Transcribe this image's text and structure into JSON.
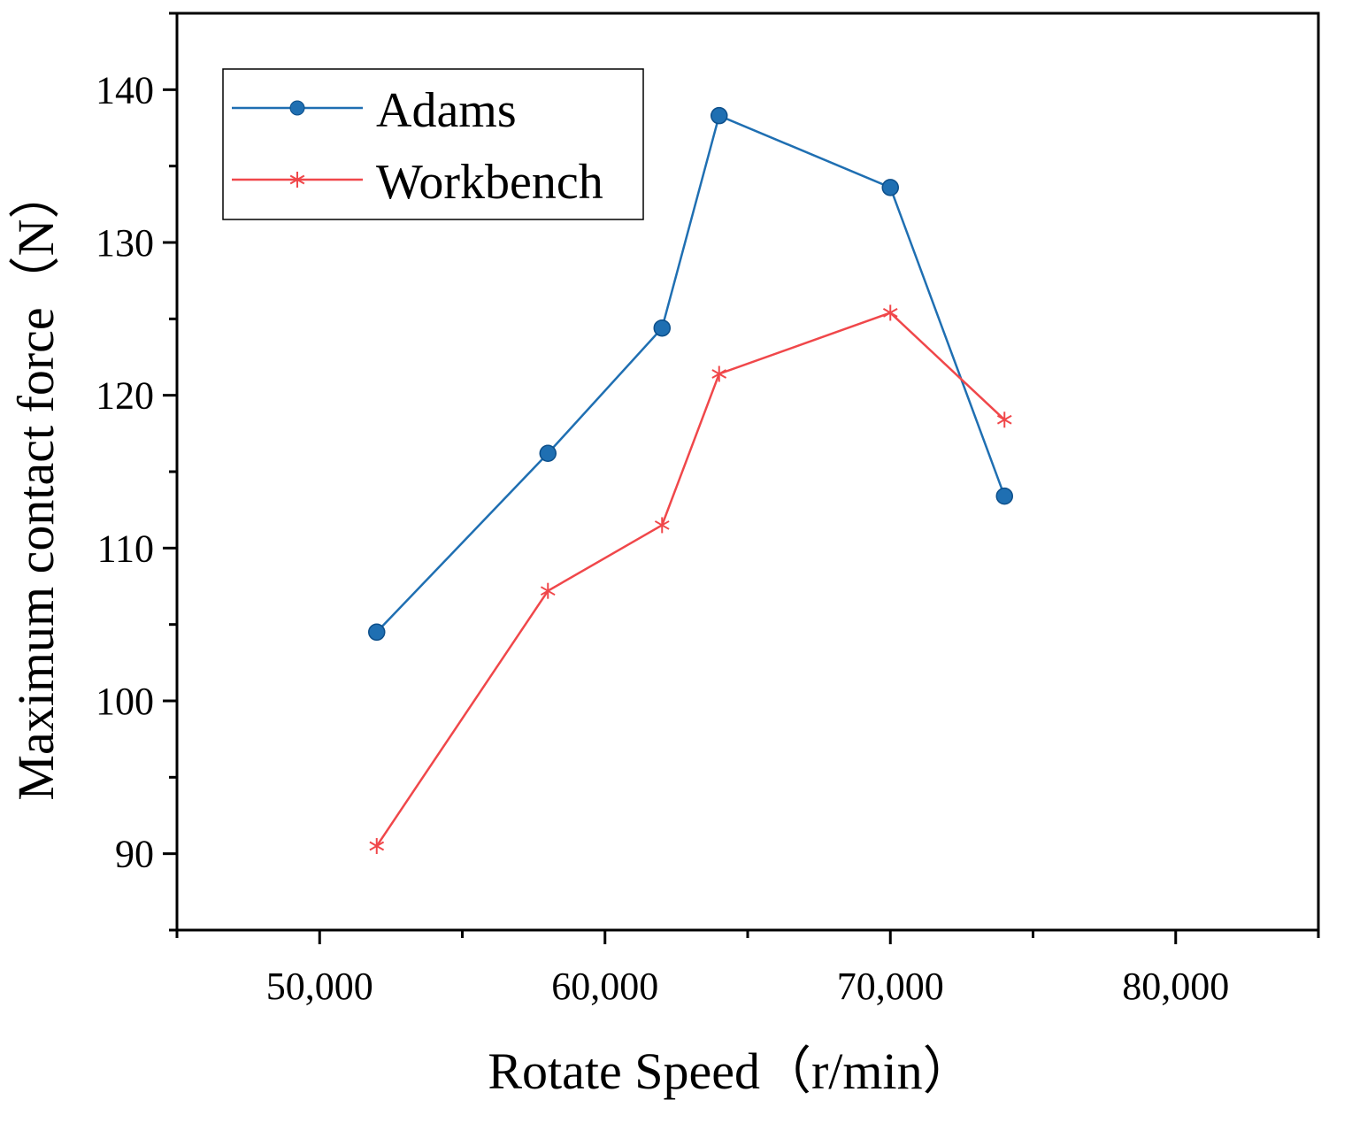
{
  "chart_data": {
    "type": "line",
    "title": "",
    "xlabel": "Rotate Speed（r/min）",
    "ylabel": "Maximum contact force（N）",
    "xlim": [
      45000,
      85000
    ],
    "ylim": [
      85,
      145
    ],
    "x_ticks": [
      50000,
      60000,
      70000,
      80000
    ],
    "x_tick_labels": [
      "50,000",
      "60,000",
      "70,000",
      "80,000"
    ],
    "y_ticks": [
      90,
      100,
      110,
      120,
      130,
      140
    ],
    "y_tick_labels": [
      "90",
      "100",
      "110",
      "120",
      "130",
      "140"
    ],
    "grid": false,
    "legend_position": "top-left",
    "series": [
      {
        "name": "Adams",
        "color": "#1f6fb2",
        "marker": "circle",
        "x": [
          52000,
          58000,
          62000,
          64000,
          70000,
          74000
        ],
        "y": [
          104.5,
          116.2,
          124.4,
          138.3,
          133.6,
          113.4
        ]
      },
      {
        "name": "Workbench",
        "color": "#f0474a",
        "marker": "asterisk",
        "x": [
          52000,
          58000,
          62000,
          64000,
          70000,
          74000
        ],
        "y": [
          90.5,
          107.2,
          111.5,
          121.4,
          125.4,
          118.4
        ]
      }
    ]
  }
}
